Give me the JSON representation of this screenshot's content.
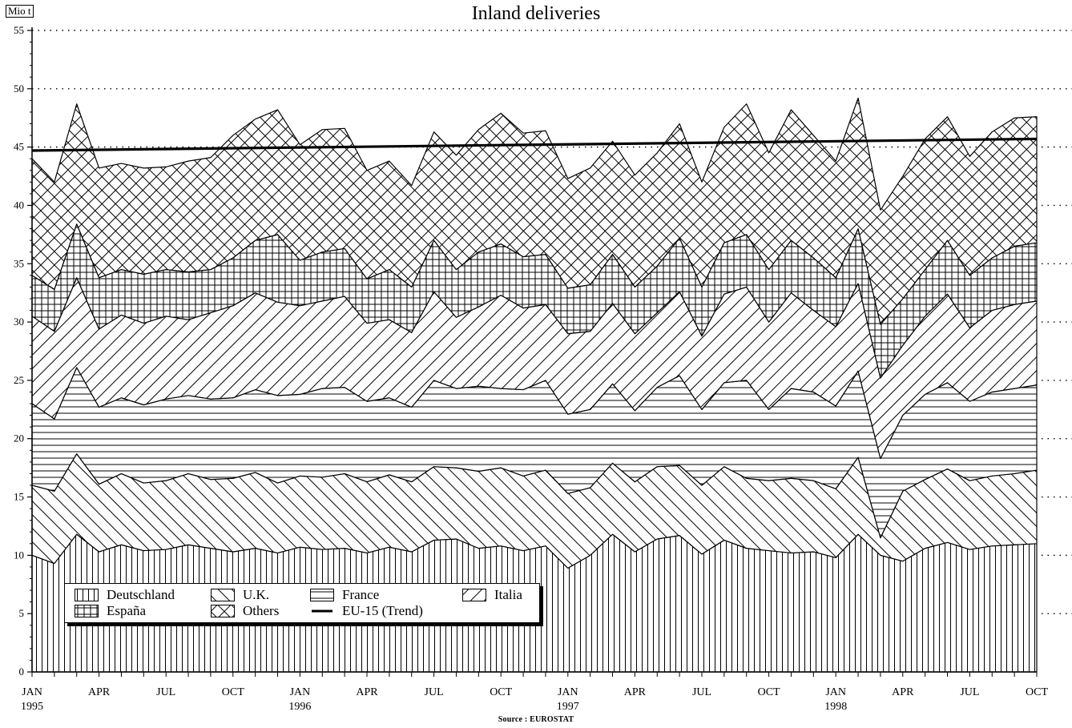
{
  "chart_data": {
    "type": "area",
    "stacked": true,
    "title": "Inland deliveries",
    "ylabel": "Mio t",
    "source": "Source : EUROSTAT",
    "ylim": [
      0,
      55
    ],
    "yticks": [
      "0",
      "5",
      "10",
      "15",
      "20",
      "25",
      "30",
      "35",
      "40",
      "45",
      "50",
      "55"
    ],
    "x_range": [
      1995.0,
      1998.75
    ],
    "x_tick_labels": [
      {
        "month": "JAN",
        "year": "1995",
        "x": 1995.0
      },
      {
        "month": "APR",
        "year": "",
        "x": 1995.25
      },
      {
        "month": "JUL",
        "year": "",
        "x": 1995.5
      },
      {
        "month": "OCT",
        "year": "",
        "x": 1995.75
      },
      {
        "month": "JAN",
        "year": "1996",
        "x": 1996.0
      },
      {
        "month": "APR",
        "year": "",
        "x": 1996.25
      },
      {
        "month": "JUL",
        "year": "",
        "x": 1996.5
      },
      {
        "month": "OCT",
        "year": "",
        "x": 1996.75
      },
      {
        "month": "JAN",
        "year": "1997",
        "x": 1997.0
      },
      {
        "month": "APR",
        "year": "",
        "x": 1997.25
      },
      {
        "month": "JUL",
        "year": "",
        "x": 1997.5
      },
      {
        "month": "OCT",
        "year": "",
        "x": 1997.75
      },
      {
        "month": "JAN",
        "year": "1998",
        "x": 1998.0
      },
      {
        "month": "APR",
        "year": "",
        "x": 1998.25
      },
      {
        "month": "JUL",
        "year": "",
        "x": 1998.5
      },
      {
        "month": "OCT",
        "year": "",
        "x": 1998.75
      }
    ],
    "x": [
      1995.0,
      1995.0833,
      1995.1667,
      1995.25,
      1995.3333,
      1995.4167,
      1995.5,
      1995.5833,
      1995.6667,
      1995.75,
      1995.8333,
      1995.9167,
      1996.0,
      1996.0833,
      1996.1667,
      1996.25,
      1996.3333,
      1996.4167,
      1996.5,
      1996.5833,
      1996.6667,
      1996.75,
      1996.8333,
      1996.9167,
      1997.0,
      1997.0833,
      1997.1667,
      1997.25,
      1997.3333,
      1997.4167,
      1997.5,
      1997.5833,
      1997.6667,
      1997.75,
      1997.8333,
      1997.9167,
      1998.0,
      1998.0833,
      1998.1667,
      1998.25,
      1998.3333,
      1998.4167,
      1998.5,
      1998.5833,
      1998.6667,
      1998.75
    ],
    "cumulative_tops": {
      "Deutschland": [
        10.0,
        9.3,
        11.8,
        10.3,
        10.9,
        10.4,
        10.5,
        10.9,
        10.6,
        10.3,
        10.6,
        10.2,
        10.7,
        10.5,
        10.6,
        10.2,
        10.7,
        10.3,
        11.3,
        11.4,
        10.6,
        10.8,
        10.4,
        10.8,
        8.9,
        10.0,
        11.8,
        10.3,
        11.4,
        11.7,
        10.1,
        11.3,
        10.6,
        10.4,
        10.2,
        10.3,
        9.8,
        11.8,
        10.0,
        9.5,
        10.6,
        11.1,
        10.5,
        10.8,
        10.9,
        11.0
      ],
      "U.K.": [
        16.0,
        15.5,
        18.7,
        16.1,
        17.0,
        16.2,
        16.4,
        17.0,
        16.5,
        16.6,
        17.1,
        16.2,
        16.8,
        16.7,
        17.0,
        16.3,
        16.9,
        16.3,
        17.6,
        17.5,
        17.2,
        17.5,
        16.8,
        17.3,
        15.3,
        15.8,
        17.9,
        16.3,
        17.6,
        17.7,
        16.0,
        17.6,
        16.6,
        16.4,
        16.6,
        16.4,
        15.7,
        18.4,
        11.5,
        15.5,
        16.5,
        17.4,
        16.4,
        16.8,
        17.0,
        17.3
      ],
      "France": [
        23.0,
        21.7,
        26.1,
        22.7,
        23.5,
        22.9,
        23.4,
        23.7,
        23.4,
        23.5,
        24.2,
        23.7,
        23.8,
        24.3,
        24.4,
        23.2,
        23.5,
        22.7,
        25.0,
        24.3,
        24.5,
        24.3,
        24.2,
        25.0,
        22.1,
        22.5,
        24.7,
        22.4,
        24.4,
        25.4,
        22.5,
        24.8,
        25.0,
        22.5,
        24.3,
        24.0,
        22.8,
        25.8,
        18.3,
        22.0,
        23.8,
        24.8,
        23.2,
        24.0,
        24.3,
        24.6
      ],
      "Italia": [
        30.5,
        29.2,
        33.8,
        29.4,
        30.6,
        29.9,
        30.5,
        30.2,
        30.8,
        31.4,
        32.5,
        31.7,
        31.4,
        31.8,
        32.2,
        29.9,
        30.2,
        29.1,
        32.6,
        30.4,
        31.3,
        32.3,
        31.2,
        31.5,
        29.0,
        29.2,
        31.6,
        29.0,
        30.8,
        32.6,
        28.8,
        32.4,
        33.0,
        30.0,
        32.5,
        31.0,
        29.6,
        33.3,
        25.2,
        28.0,
        30.5,
        32.4,
        29.5,
        31.0,
        31.5,
        31.8
      ],
      "España": [
        34.0,
        32.8,
        38.4,
        33.8,
        34.5,
        34.1,
        34.5,
        34.3,
        34.5,
        35.5,
        37.0,
        37.5,
        35.3,
        36.0,
        36.3,
        33.7,
        34.5,
        33.0,
        37.0,
        34.5,
        36.0,
        36.7,
        35.6,
        35.8,
        32.9,
        33.2,
        35.8,
        33.0,
        34.8,
        37.2,
        33.0,
        36.8,
        37.5,
        34.5,
        37.0,
        35.5,
        33.8,
        38.0,
        29.8,
        32.0,
        34.5,
        37.0,
        34.0,
        35.5,
        36.5,
        36.8
      ],
      "Others": [
        44.0,
        42.0,
        48.7,
        43.2,
        43.6,
        43.2,
        43.3,
        43.8,
        44.1,
        46.0,
        47.4,
        48.2,
        45.2,
        46.5,
        46.6,
        43.0,
        43.8,
        41.7,
        46.3,
        44.3,
        46.5,
        47.9,
        46.2,
        46.4,
        42.3,
        43.2,
        45.5,
        42.6,
        44.5,
        47.0,
        42.0,
        46.7,
        48.7,
        44.5,
        48.2,
        46.0,
        43.8,
        49.2,
        39.6,
        42.5,
        45.7,
        47.6,
        44.2,
        46.3,
        47.5,
        47.6
      ]
    },
    "series": [
      {
        "name": "Deutschland",
        "pattern": "vertical-lines"
      },
      {
        "name": "U.K.",
        "pattern": "back-diagonal"
      },
      {
        "name": "France",
        "pattern": "horizontal-lines"
      },
      {
        "name": "Italia",
        "pattern": "forward-diagonal"
      },
      {
        "name": "España",
        "pattern": "grid"
      },
      {
        "name": "Others",
        "pattern": "diamond-crosshatch"
      }
    ],
    "trend": {
      "name": "EU-15 (Trend)",
      "start": 44.7,
      "end": 45.7
    },
    "grid": "dotted horizontal at 45, 50, 55",
    "legend": {
      "placement": "bottom-left",
      "entries": [
        "Deutschland",
        "U.K.",
        "France",
        "Italia",
        "España",
        "Others",
        "EU-15 (Trend)"
      ]
    }
  }
}
